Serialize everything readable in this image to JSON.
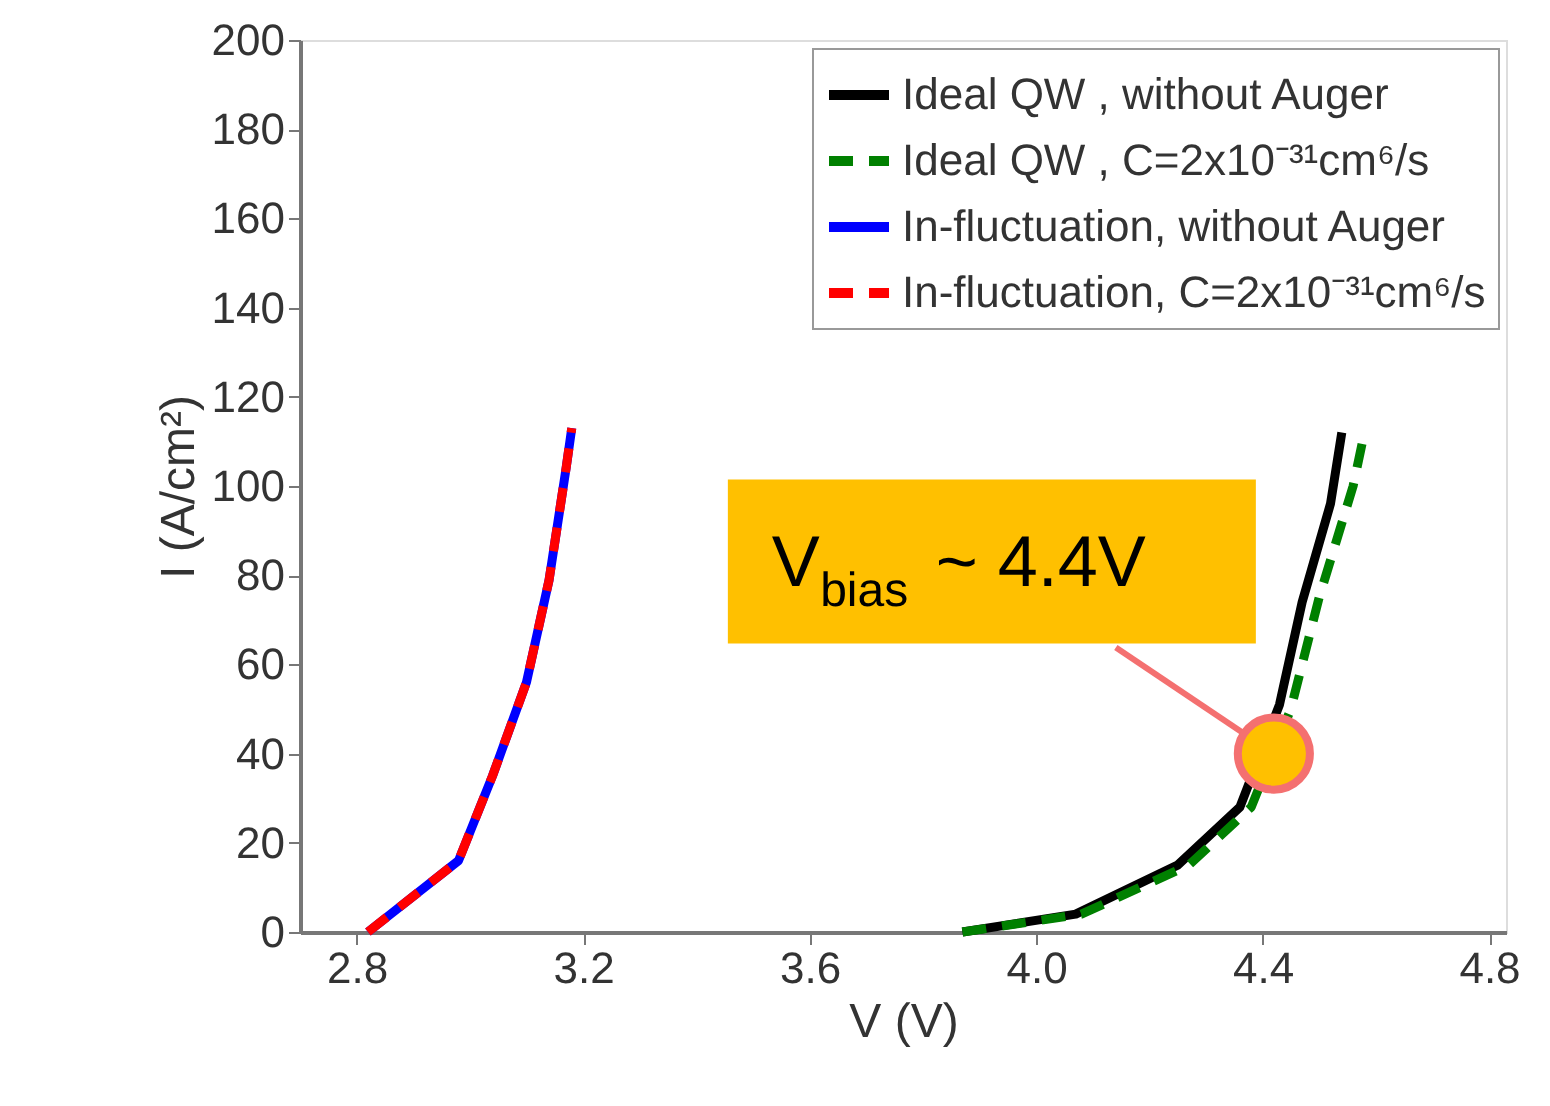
{
  "chart_data": {
    "type": "line",
    "xlabel": "V (V)",
    "ylabel": "I (A/cm²)",
    "xlim": [
      2.7,
      4.83
    ],
    "ylim": [
      0,
      200
    ],
    "xticks": [
      {
        "value": 2.8,
        "label": "2.8"
      },
      {
        "value": 3.2,
        "label": "3.2"
      },
      {
        "value": 3.6,
        "label": "3.6"
      },
      {
        "value": 4.0,
        "label": "4.0"
      },
      {
        "value": 4.4,
        "label": "4.4"
      },
      {
        "value": 4.8,
        "label": "4.8"
      }
    ],
    "yticks": [
      0,
      20,
      40,
      60,
      80,
      100,
      120,
      140,
      160,
      180,
      200
    ],
    "grid": false,
    "legend": "top right",
    "marker": "none",
    "series": [
      {
        "name": "Ideal QW , without Auger",
        "color": "#000000",
        "line_style": "solid",
        "x": [
          3.87,
          4.07,
          4.25,
          4.36,
          4.43,
          4.47,
          4.52,
          4.54
        ],
        "values": [
          0,
          4,
          15,
          28,
          51,
          74,
          96,
          112
        ]
      },
      {
        "name": "Ideal QW , C=2x10⁻³¹cm⁶/s",
        "color": "#008000",
        "line_style": "dashed",
        "x": [
          3.87,
          4.08,
          4.27,
          4.38,
          4.45,
          4.5,
          4.56,
          4.58
        ],
        "values": [
          0,
          4,
          15,
          28,
          50,
          75,
          100,
          112
        ]
      },
      {
        "name": "In-fluctuation, without Auger",
        "color": "#0000ff",
        "line_style": "solid",
        "x": [
          2.82,
          2.98,
          3.04,
          3.1,
          3.14,
          3.17,
          3.18
        ],
        "values": [
          0,
          16,
          35,
          56,
          79,
          104,
          113
        ]
      },
      {
        "name": "In-fluctuation, C=2x10⁻³¹cm⁶/s",
        "color": "#ff0000",
        "line_style": "dashed",
        "x": [
          2.82,
          2.98,
          3.04,
          3.1,
          3.14,
          3.17,
          3.18
        ],
        "values": [
          0,
          16,
          35,
          56,
          79,
          104,
          113
        ]
      }
    ],
    "annotations": [
      {
        "text": "V$_{bias}$ ~ 4.4V",
        "x": 4.42,
        "y": 40
      }
    ]
  }
}
